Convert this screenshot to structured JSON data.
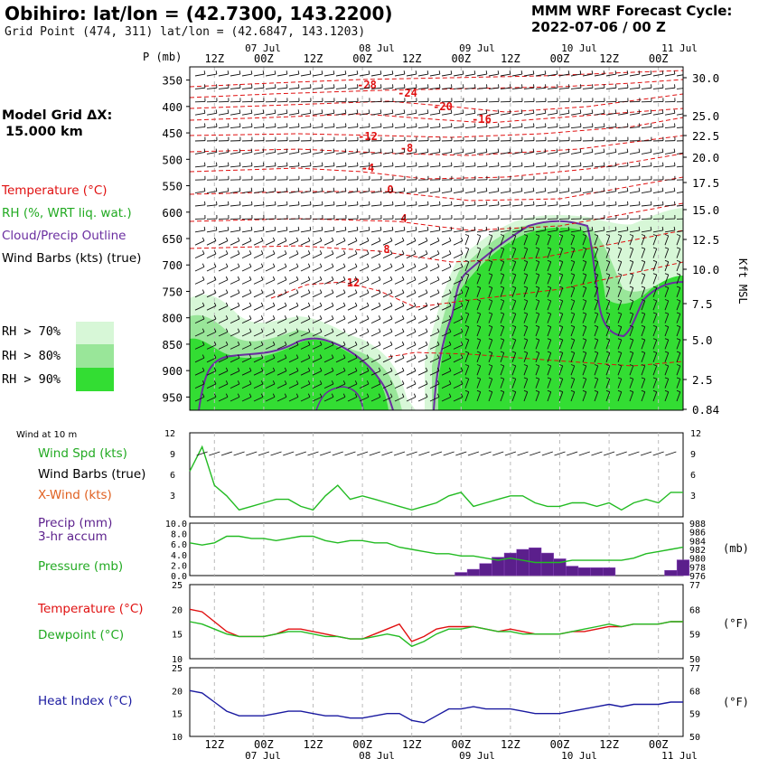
{
  "header": {
    "station_title": "Obihiro:  lat/lon = (42.7300, 143.2200)",
    "grid_point": "Grid Point (474, 311) lat/lon = (42.6847, 143.1203)",
    "model_name": "MMM WRF Forecast Cycle:",
    "cycle": "2022-07-06 / 00  Z"
  },
  "left_labels": {
    "model_grid": "Model Grid ΔX:",
    "grid_spacing": "15.000 km",
    "temperature": "Temperature (°C)",
    "rh": "RH (%, WRT liq. wat.)",
    "cloud": "Cloud/Precip Outline",
    "wind_barbs": "Wind Barbs (kts) (true)",
    "rh_levels": [
      "RH > 70%",
      "RH > 80%",
      "RH > 90%"
    ]
  },
  "colors": {
    "temp": "#e01010",
    "rh": "#22bb22",
    "cloud": "#6a2da0",
    "precip": "#5b1f8c",
    "heat": "#1a1aa0",
    "rh70": "#d7f7d7",
    "rh80": "#99e699",
    "rh90": "#33dd33"
  },
  "time_axis": {
    "tick_labels": [
      "12Z",
      "00Z",
      "12Z",
      "00Z",
      "12Z",
      "00Z",
      "12Z",
      "00Z",
      "12Z",
      "00Z"
    ],
    "date_labels": [
      "07 Jul",
      "08 Jul",
      "09 Jul",
      "10 Jul",
      "11 Jul"
    ],
    "p_label": "P (mb)",
    "kft_label": "Kft MSL"
  },
  "chart_data": [
    {
      "type": "heatmap",
      "name": "time-height cross section",
      "pressure_levels_mb": [
        350,
        400,
        450,
        500,
        550,
        600,
        650,
        700,
        750,
        800,
        850,
        900,
        950
      ],
      "height_kft": [
        "30.0",
        "25.0",
        "22.5",
        "20.0",
        "17.5",
        "15.0",
        "12.5",
        "10.0",
        "7.5",
        "5.0",
        "2.5",
        "0.84"
      ],
      "temperature_contour_labels": [
        "-28",
        "-24",
        "-20",
        "-16",
        "-12",
        "-8",
        "-4",
        "0",
        "4",
        "8",
        "12"
      ]
    },
    {
      "type": "line",
      "name": "10 m wind",
      "section_label": "Wind at 10 m",
      "labels": [
        "Wind Spd (kts)",
        "Wind Barbs (true)",
        "X-Wind (kts)"
      ],
      "y_ticks": [
        "12",
        "9",
        "6",
        "3"
      ],
      "ylim": [
        0,
        12
      ],
      "hours": [
        0,
        3,
        6,
        9,
        12,
        15,
        18,
        21,
        24,
        27,
        30,
        33,
        36,
        39,
        42,
        45,
        48,
        51,
        54,
        57,
        60,
        63,
        66,
        69,
        72,
        75,
        78,
        81,
        84,
        87,
        90,
        93,
        96,
        99,
        102,
        105,
        108,
        111,
        114,
        117,
        120
      ],
      "wind_speed": [
        6.5,
        10,
        4.5,
        3,
        1,
        1.5,
        2,
        2.5,
        2.5,
        1.5,
        1,
        3,
        4.5,
        2.5,
        3,
        2.5,
        2,
        1.5,
        1,
        1.5,
        2,
        3,
        3.5,
        1.5,
        2,
        2.5,
        3,
        3,
        2,
        1.5,
        1.5,
        2,
        2,
        1.5,
        2,
        1,
        2,
        2.5,
        2,
        3.5,
        3.5
      ]
    },
    {
      "type": "bar",
      "name": "precip and pressure",
      "labels": [
        "Precip (mm)",
        "3-hr accum",
        "Pressure (mb)"
      ],
      "precip_ticks": [
        "10.0",
        "8.0",
        "6.0",
        "4.0",
        "2.0",
        "0.0"
      ],
      "pressure_ticks": [
        "988",
        "986",
        "984",
        "982",
        "980",
        "978",
        "976"
      ],
      "unit_label": "(mb)",
      "precip_ylim": [
        0,
        10
      ],
      "pressure_ylim": [
        976,
        988
      ],
      "hours": [
        0,
        3,
        6,
        9,
        12,
        15,
        18,
        21,
        24,
        27,
        30,
        33,
        36,
        39,
        42,
        45,
        48,
        51,
        54,
        57,
        60,
        63,
        66,
        69,
        72,
        75,
        78,
        81,
        84,
        87,
        90,
        93,
        96,
        99,
        102,
        105,
        108,
        111,
        114,
        117,
        120
      ],
      "precip_mm": [
        0,
        0,
        0,
        0,
        0,
        0,
        0,
        0,
        0,
        0,
        0,
        0,
        0,
        0,
        0,
        0,
        0,
        0,
        0,
        0,
        0,
        0,
        0.6,
        1.2,
        2.3,
        3.5,
        4.3,
        5,
        5.3,
        4.3,
        3.2,
        1.8,
        1.5,
        1.5,
        1.5,
        0,
        0,
        0,
        0,
        1,
        3
      ],
      "pressure_mb": [
        983.5,
        983,
        983.5,
        985,
        985,
        984.5,
        984.5,
        984,
        984.5,
        985,
        985,
        984,
        983.5,
        984,
        984,
        983.5,
        983.5,
        982.5,
        982,
        981.5,
        981,
        981,
        980.5,
        980.5,
        980,
        979.5,
        980,
        979.5,
        979,
        979,
        979,
        979.5,
        979.5,
        979.5,
        979.5,
        979.5,
        980,
        981,
        981.5,
        982,
        982.5
      ]
    },
    {
      "type": "line",
      "name": "temperature and dewpoint",
      "labels": [
        "Temperature (°C)",
        "Dewpoint (°C)"
      ],
      "y_ticks_c": [
        "25",
        "20",
        "15",
        "10"
      ],
      "y_ticks_f": [
        "77",
        "68",
        "59",
        "50"
      ],
      "unit_label": "(°F)",
      "ylim": [
        10,
        25
      ],
      "hours": [
        0,
        3,
        6,
        9,
        12,
        15,
        18,
        21,
        24,
        27,
        30,
        33,
        36,
        39,
        42,
        45,
        48,
        51,
        54,
        57,
        60,
        63,
        66,
        69,
        72,
        75,
        78,
        81,
        84,
        87,
        90,
        93,
        96,
        99,
        102,
        105,
        108,
        111,
        114,
        117,
        120
      ],
      "temperature": [
        20,
        19.5,
        17.5,
        15.5,
        14.5,
        14.5,
        14.5,
        15,
        16,
        16,
        15.5,
        15,
        14.5,
        14,
        14,
        15,
        16,
        17,
        13.5,
        14.5,
        16,
        16.5,
        16.5,
        16.5,
        16,
        15.5,
        16,
        15.5,
        15,
        15,
        15,
        15.5,
        15.5,
        16,
        16.5,
        16.5,
        17,
        17,
        17,
        17.5,
        17.5
      ],
      "dewpoint": [
        17.5,
        17,
        16,
        15,
        14.5,
        14.5,
        14.5,
        15,
        15.5,
        15.5,
        15,
        14.5,
        14.5,
        14,
        14,
        14.5,
        15,
        14.5,
        12.5,
        13.5,
        15,
        16,
        16,
        16.5,
        16,
        15.5,
        15.5,
        15,
        15,
        15,
        15,
        15.5,
        16,
        16.5,
        17,
        16.5,
        17,
        17,
        17,
        17.5,
        17.5
      ]
    },
    {
      "type": "line",
      "name": "heat index",
      "labels": [
        "Heat Index (°C)"
      ],
      "y_ticks_c": [
        "25",
        "20",
        "15",
        "10"
      ],
      "y_ticks_f": [
        "77",
        "68",
        "59",
        "50"
      ],
      "unit_label": "(°F)",
      "ylim": [
        10,
        25
      ],
      "hours": [
        0,
        3,
        6,
        9,
        12,
        15,
        18,
        21,
        24,
        27,
        30,
        33,
        36,
        39,
        42,
        45,
        48,
        51,
        54,
        57,
        60,
        63,
        66,
        69,
        72,
        75,
        78,
        81,
        84,
        87,
        90,
        93,
        96,
        99,
        102,
        105,
        108,
        111,
        114,
        117,
        120
      ],
      "heat_index": [
        20,
        19.5,
        17.5,
        15.5,
        14.5,
        14.5,
        14.5,
        15,
        15.5,
        15.5,
        15,
        14.5,
        14.5,
        14,
        14,
        14.5,
        15,
        15,
        13.5,
        13,
        14.5,
        16,
        16,
        16.5,
        16,
        16,
        16,
        15.5,
        15,
        15,
        15,
        15.5,
        16,
        16.5,
        17,
        16.5,
        17,
        17,
        17,
        17.5,
        17.5
      ]
    }
  ]
}
